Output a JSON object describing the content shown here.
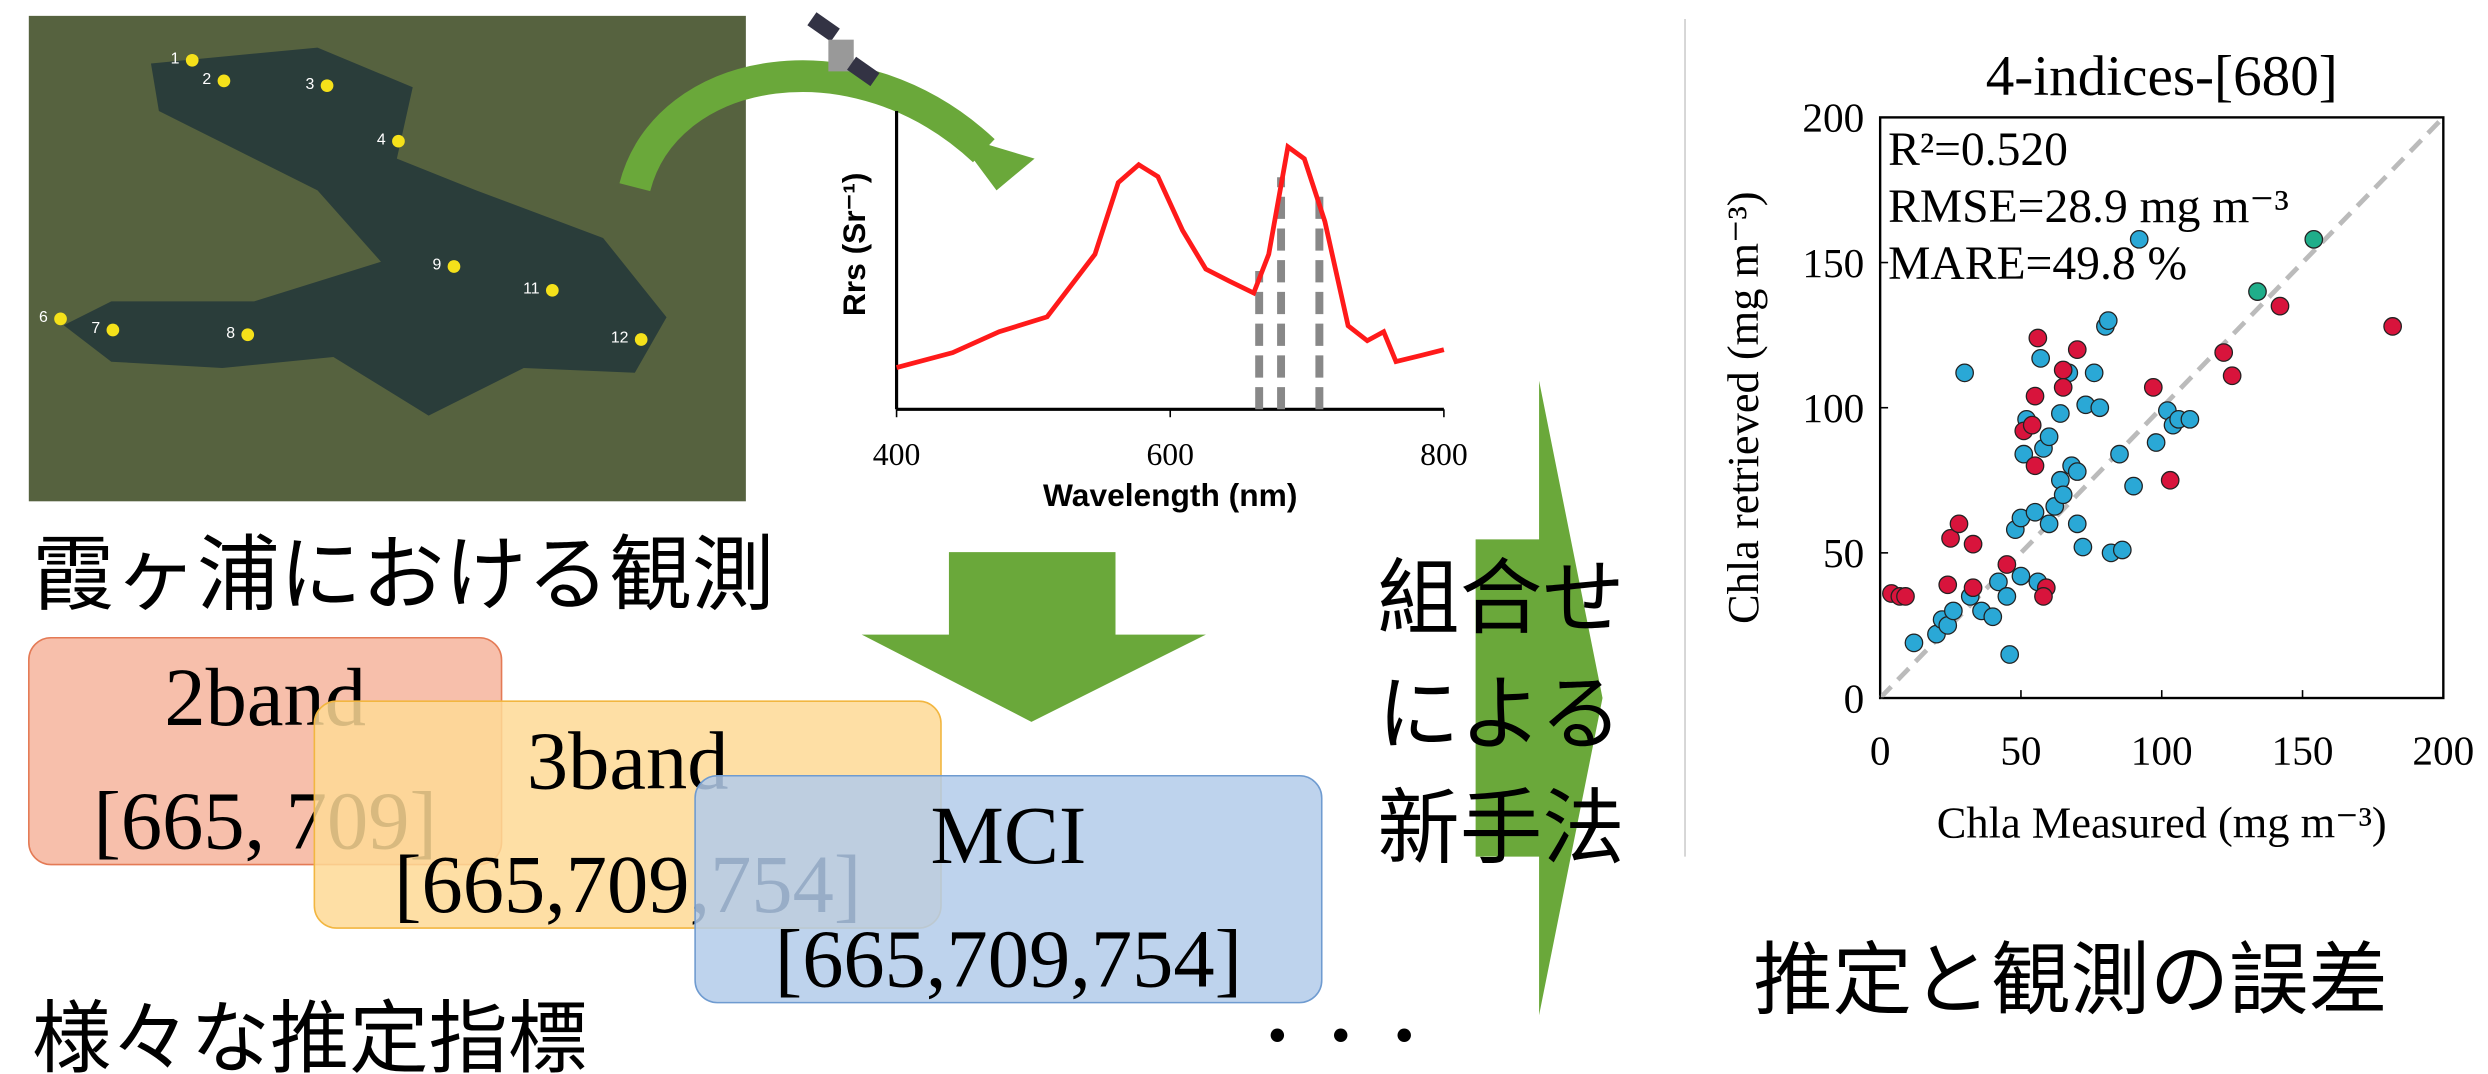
{
  "map": {
    "pins": [
      "1",
      "2",
      "3",
      "4",
      "6",
      "7",
      "8",
      "9",
      "11",
      "12"
    ]
  },
  "observation_caption": "霞ヶ浦における観測",
  "index_boxes": [
    {
      "name": "2band",
      "bands": "[665, 709]",
      "fill": "#f6b49c",
      "stroke": "#e47a55"
    },
    {
      "name": "3band",
      "bands": "[665,709,754]",
      "fill": "#fed995",
      "stroke": "#f2b640"
    },
    {
      "name": "MCI",
      "bands": "[665,709,754]",
      "fill": "#b3cbea",
      "stroke": "#6f9bd0"
    }
  ],
  "indices_caption": "様々な推定指標",
  "ellipsis": "・・・",
  "method_text": [
    "組合せ",
    "による",
    "新手法"
  ],
  "error_caption": "推定と観測の誤差",
  "chart_data": [
    {
      "type": "line",
      "y_label": "Rrs (Sr⁻¹)",
      "x_label": "Wavelength (nm)",
      "x": [
        400,
        441,
        475,
        510,
        545,
        562,
        577,
        591,
        609,
        626,
        643,
        661,
        672,
        686,
        698,
        713,
        730,
        744,
        756,
        765,
        783,
        800
      ],
      "values": [
        0.14,
        0.19,
        0.26,
        0.31,
        0.52,
        0.76,
        0.82,
        0.78,
        0.6,
        0.47,
        0.43,
        0.39,
        0.52,
        0.88,
        0.84,
        0.63,
        0.28,
        0.23,
        0.26,
        0.16,
        0.18,
        0.2
      ],
      "color": "#ff1a1a",
      "xlim": [
        400,
        800
      ],
      "xticks": [
        400,
        600,
        800
      ],
      "ylim": [
        0,
        1
      ],
      "selected_bands": [
        665,
        681,
        709
      ]
    },
    {
      "type": "scatter",
      "title": "4-indices-[680]",
      "x_label": "Chla Measured (mg m⁻³)",
      "y_label": "Chla retrieved (mg m⁻³)",
      "annotations": [
        "R²=0.520",
        "RMSE=28.9 mg m⁻³",
        "MARE=49.8 %"
      ],
      "xlim": [
        0,
        200
      ],
      "ylim": [
        0,
        200
      ],
      "xticks": [
        0,
        50,
        100,
        150,
        200
      ],
      "yticks": [
        0,
        50,
        100,
        150,
        200
      ],
      "series": [
        {
          "color": "#2aa8d6",
          "x": [
            12,
            20,
            22,
            24,
            26,
            30,
            32,
            36,
            40,
            42,
            45,
            46,
            48,
            50,
            51,
            52,
            55,
            57,
            58,
            60,
            62,
            64,
            64,
            65,
            67,
            68,
            70,
            72,
            73,
            76,
            78,
            80,
            81,
            82,
            85,
            86,
            90,
            92,
            98,
            102,
            104,
            106,
            110,
            60,
            56,
            50,
            70
          ],
          "y": [
            19,
            22,
            27,
            25,
            30,
            112,
            35,
            30,
            28,
            40,
            35,
            15,
            58,
            62,
            84,
            96,
            64,
            117,
            86,
            90,
            66,
            98,
            75,
            70,
            112,
            80,
            78,
            52,
            101,
            112,
            100,
            128,
            130,
            50,
            84,
            51,
            73,
            158,
            88,
            99,
            94,
            96,
            96,
            60,
            40,
            42,
            60
          ]
        },
        {
          "color": "#d8143c",
          "x": [
            4,
            7,
            9,
            24,
            25,
            28,
            33,
            33,
            45,
            51,
            55,
            54,
            55,
            56,
            59,
            58,
            65,
            65,
            70,
            97,
            103,
            122,
            125,
            142,
            182
          ],
          "y": [
            36,
            35,
            35,
            39,
            55,
            60,
            53,
            38,
            46,
            92,
            104,
            94,
            80,
            124,
            38,
            35,
            113,
            107,
            120,
            107,
            75,
            119,
            111,
            135,
            128
          ]
        },
        {
          "color": "#1fae8a",
          "x": [
            134,
            154
          ],
          "y": [
            140,
            158
          ]
        }
      ]
    }
  ]
}
